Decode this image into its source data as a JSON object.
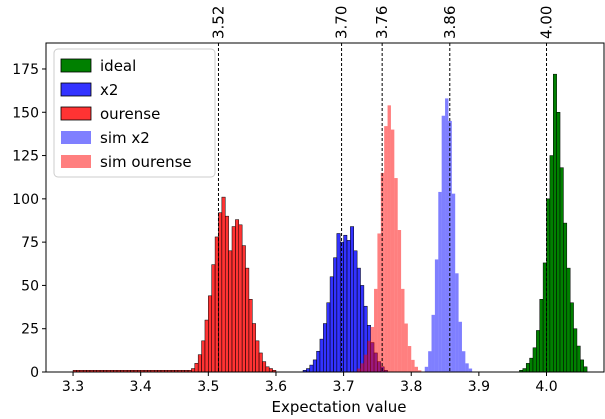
{
  "chart_data": {
    "type": "histogram",
    "xlabel": "Expectation value",
    "ylabel": "",
    "xlim": [
      3.26,
      4.085
    ],
    "ylim": [
      0,
      190
    ],
    "x_ticks": [
      3.3,
      3.4,
      3.5,
      3.6,
      3.7,
      3.8,
      3.9,
      4.0
    ],
    "x_tick_labels": [
      "3.3",
      "3.4",
      "3.5",
      "3.6",
      "3.7",
      "3.8",
      "3.9",
      "4.0"
    ],
    "y_ticks": [
      0,
      25,
      50,
      75,
      100,
      125,
      150,
      175
    ],
    "y_tick_labels": [
      "0",
      "25",
      "50",
      "75",
      "100",
      "125",
      "150",
      "175"
    ],
    "bin_width": 0.005,
    "legend_position": "top-left",
    "vlines": [
      {
        "x": 3.515,
        "label": "3.52"
      },
      {
        "x": 3.697,
        "label": "3.70"
      },
      {
        "x": 3.757,
        "label": "3.76"
      },
      {
        "x": 3.857,
        "label": "3.86"
      },
      {
        "x": 4.0,
        "label": "4.00"
      }
    ],
    "series": [
      {
        "name": "ideal",
        "color": "#008000",
        "opacity": 1.0,
        "edge": true,
        "x_start": 3.96,
        "counts": [
          1,
          2,
          5,
          8,
          14,
          24,
          42,
          63,
          100,
          125,
          172,
          150,
          118,
          86,
          60,
          40,
          25,
          15,
          7,
          3
        ]
      },
      {
        "name": "x2",
        "color": "#0000ff",
        "opacity": 0.8,
        "edge": true,
        "x_start": 3.64,
        "counts": [
          1,
          2,
          4,
          7,
          12,
          19,
          28,
          40,
          55,
          66,
          80,
          75,
          79,
          76,
          84,
          70,
          60,
          50,
          38,
          27,
          17,
          11,
          6,
          3,
          1
        ]
      },
      {
        "name": "ourense",
        "color": "#ff0000",
        "opacity": 0.8,
        "edge": true,
        "x_start": 3.3,
        "counts": [
          1,
          1,
          1,
          1,
          1,
          1,
          1,
          1,
          1,
          1,
          1,
          1,
          1,
          1,
          1,
          1,
          1,
          1,
          1,
          1,
          1,
          1,
          1,
          1,
          1,
          1,
          1,
          1,
          1,
          1,
          1,
          1,
          1,
          1,
          1,
          2,
          5,
          10,
          18,
          30,
          44,
          62,
          78,
          92,
          101,
          90,
          70,
          84,
          88,
          85,
          73,
          60,
          42,
          28,
          18,
          11,
          6,
          3,
          2,
          1
        ]
      },
      {
        "name": "sim x2",
        "color": "#0000ff",
        "opacity": 0.5,
        "edge": false,
        "x_start": 3.82,
        "counts": [
          3,
          12,
          33,
          65,
          104,
          148,
          158,
          145,
          103,
          57,
          29,
          12,
          5,
          2
        ]
      },
      {
        "name": "sim ourense",
        "color": "#ff0000",
        "opacity": 0.5,
        "edge": false,
        "x_start": 3.72,
        "counts": [
          2,
          5,
          10,
          18,
          26,
          48,
          80,
          115,
          142,
          154,
          140,
          112,
          82,
          48,
          28,
          15,
          7,
          3,
          1
        ]
      }
    ]
  }
}
